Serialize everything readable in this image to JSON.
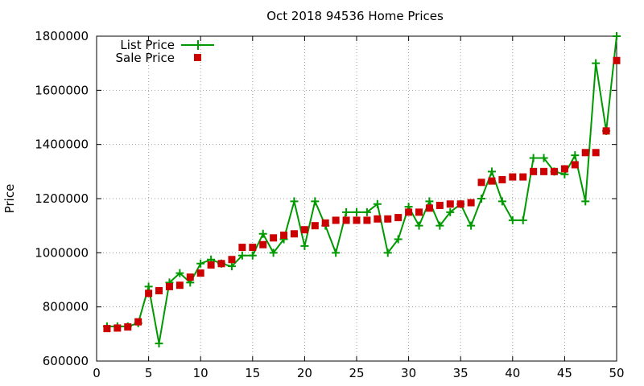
{
  "chart_data": {
    "type": "line",
    "title": "Oct 2018 94536 Home Prices",
    "xlabel": "",
    "ylabel": "Price",
    "xlim": [
      0,
      50
    ],
    "ylim": [
      600000,
      1800000
    ],
    "xticks": [
      0,
      5,
      10,
      15,
      20,
      25,
      30,
      35,
      40,
      45,
      50
    ],
    "yticks": [
      600000,
      800000,
      1000000,
      1200000,
      1400000,
      1600000,
      1800000
    ],
    "grid": true,
    "legend_position": "top-left",
    "series": [
      {
        "name": "List Price",
        "style": "line-plus",
        "color": "#009900",
        "x": [
          1,
          2,
          3,
          4,
          5,
          6,
          7,
          8,
          9,
          10,
          11,
          12,
          13,
          14,
          15,
          16,
          17,
          18,
          19,
          20,
          21,
          22,
          23,
          24,
          25,
          26,
          27,
          28,
          29,
          30,
          31,
          32,
          33,
          34,
          35,
          36,
          37,
          38,
          39,
          40,
          41,
          42,
          43,
          44,
          45,
          46,
          47,
          48,
          49,
          50
        ],
        "values": [
          728000,
          728000,
          728000,
          740000,
          875000,
          665000,
          890000,
          925000,
          890000,
          960000,
          975000,
          960000,
          950000,
          990000,
          990000,
          1070000,
          1000000,
          1050000,
          1190000,
          1025000,
          1190000,
          1100000,
          1000000,
          1150000,
          1150000,
          1150000,
          1180000,
          1000000,
          1050000,
          1170000,
          1100000,
          1190000,
          1100000,
          1150000,
          1180000,
          1100000,
          1200000,
          1300000,
          1190000,
          1120000,
          1120000,
          1350000,
          1350000,
          1300000,
          1290000,
          1360000,
          1190000,
          1700000,
          1450000,
          1800000
        ]
      },
      {
        "name": "Sale Price",
        "style": "square",
        "color": "#cc0000",
        "x": [
          1,
          2,
          3,
          4,
          5,
          6,
          7,
          8,
          9,
          10,
          11,
          12,
          13,
          14,
          15,
          16,
          17,
          18,
          19,
          20,
          21,
          22,
          23,
          24,
          25,
          26,
          27,
          28,
          29,
          30,
          31,
          32,
          33,
          34,
          35,
          36,
          37,
          38,
          39,
          40,
          41,
          42,
          43,
          44,
          45,
          46,
          47,
          48,
          49,
          50
        ],
        "values": [
          720000,
          722000,
          726000,
          745000,
          850000,
          860000,
          875000,
          880000,
          910000,
          925000,
          955000,
          960000,
          975000,
          1020000,
          1020000,
          1030000,
          1055000,
          1065000,
          1070000,
          1085000,
          1100000,
          1110000,
          1120000,
          1120000,
          1120000,
          1120000,
          1125000,
          1125000,
          1130000,
          1150000,
          1150000,
          1165000,
          1175000,
          1180000,
          1180000,
          1185000,
          1260000,
          1265000,
          1270000,
          1280000,
          1280000,
          1300000,
          1300000,
          1300000,
          1310000,
          1325000,
          1370000,
          1370000,
          1450000,
          1710000
        ]
      }
    ]
  }
}
